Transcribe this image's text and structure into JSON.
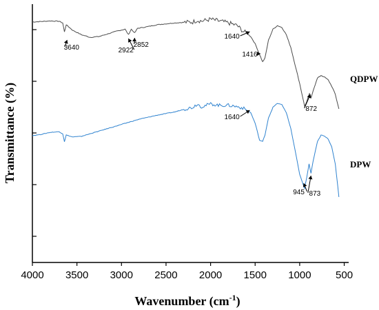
{
  "chart_data": {
    "type": "line",
    "xlabel": "Wavenumber (cm⁻¹)",
    "ylabel": "Transmittance (%)",
    "xlim": [
      4000,
      450
    ],
    "x_inverted": true,
    "x_ticks": [
      4000,
      3500,
      3000,
      2500,
      2000,
      1500,
      1000,
      500
    ],
    "y_ticks_shown_without_labels": 6,
    "grid": false,
    "series": [
      {
        "name": "QDPW",
        "color": "#4a4a4a",
        "points": [
          [
            4000,
            0.94
          ],
          [
            3800,
            0.946
          ],
          [
            3700,
            0.944
          ],
          [
            3660,
            0.935
          ],
          [
            3640,
            0.885
          ],
          [
            3620,
            0.925
          ],
          [
            3550,
            0.895
          ],
          [
            3450,
            0.87
          ],
          [
            3350,
            0.855
          ],
          [
            3250,
            0.86
          ],
          [
            3150,
            0.875
          ],
          [
            3050,
            0.89
          ],
          [
            2960,
            0.9
          ],
          [
            2922,
            0.87
          ],
          [
            2890,
            0.9
          ],
          [
            2852,
            0.88
          ],
          [
            2820,
            0.905
          ],
          [
            2700,
            0.915
          ],
          [
            2600,
            0.925
          ],
          [
            2500,
            0.93
          ],
          [
            2400,
            0.935
          ],
          [
            2300,
            0.938
          ],
          [
            2200,
            0.94
          ],
          [
            2150,
            0.95
          ],
          [
            2100,
            0.945
          ],
          [
            2000,
            0.955
          ],
          [
            1900,
            0.945
          ],
          [
            1800,
            0.935
          ],
          [
            1700,
            0.92
          ],
          [
            1640,
            0.89
          ],
          [
            1600,
            0.88
          ],
          [
            1550,
            0.86
          ],
          [
            1500,
            0.82
          ],
          [
            1450,
            0.76
          ],
          [
            1416,
            0.72
          ],
          [
            1390,
            0.74
          ],
          [
            1350,
            0.84
          ],
          [
            1300,
            0.9
          ],
          [
            1250,
            0.92
          ],
          [
            1200,
            0.91
          ],
          [
            1150,
            0.87
          ],
          [
            1100,
            0.8
          ],
          [
            1050,
            0.7
          ],
          [
            1000,
            0.6
          ],
          [
            945,
            0.475
          ],
          [
            920,
            0.5
          ],
          [
            890,
            0.545
          ],
          [
            872,
            0.52
          ],
          [
            850,
            0.56
          ],
          [
            800,
            0.63
          ],
          [
            760,
            0.645
          ],
          [
            720,
            0.635
          ],
          [
            680,
            0.62
          ],
          [
            640,
            0.585
          ],
          [
            600,
            0.54
          ],
          [
            560,
            0.46
          ]
        ]
      },
      {
        "name": "DPW",
        "color": "#2e82cf",
        "points": [
          [
            4000,
            0.165
          ],
          [
            3900,
            0.175
          ],
          [
            3800,
            0.19
          ],
          [
            3700,
            0.195
          ],
          [
            3660,
            0.18
          ],
          [
            3640,
            0.12
          ],
          [
            3620,
            0.17
          ],
          [
            3550,
            0.155
          ],
          [
            3450,
            0.16
          ],
          [
            3350,
            0.18
          ],
          [
            3200,
            0.21
          ],
          [
            3000,
            0.25
          ],
          [
            2800,
            0.29
          ],
          [
            2600,
            0.32
          ],
          [
            2400,
            0.345
          ],
          [
            2300,
            0.365
          ],
          [
            2200,
            0.38
          ],
          [
            2150,
            0.405
          ],
          [
            2100,
            0.385
          ],
          [
            2000,
            0.405
          ],
          [
            1900,
            0.395
          ],
          [
            1800,
            0.395
          ],
          [
            1700,
            0.385
          ],
          [
            1640,
            0.375
          ],
          [
            1600,
            0.36
          ],
          [
            1550,
            0.34
          ],
          [
            1500,
            0.26
          ],
          [
            1450,
            0.13
          ],
          [
            1416,
            0.12
          ],
          [
            1390,
            0.17
          ],
          [
            1350,
            0.3
          ],
          [
            1300,
            0.38
          ],
          [
            1250,
            0.41
          ],
          [
            1200,
            0.4
          ],
          [
            1150,
            0.34
          ],
          [
            1100,
            0.22
          ],
          [
            1050,
            0.05
          ],
          [
            1000,
            -0.13
          ],
          [
            945,
            -0.235
          ],
          [
            920,
            -0.15
          ],
          [
            895,
            -0.05
          ],
          [
            873,
            -0.12
          ],
          [
            850,
            -0.03
          ],
          [
            800,
            0.12
          ],
          [
            760,
            0.17
          ],
          [
            720,
            0.16
          ],
          [
            680,
            0.14
          ],
          [
            640,
            0.08
          ],
          [
            600,
            -0.05
          ],
          [
            560,
            -0.3
          ]
        ]
      }
    ],
    "annotations": [
      {
        "series": "QDPW",
        "text": "3640",
        "x": 3640
      },
      {
        "series": "QDPW",
        "text": "2922",
        "x": 2922
      },
      {
        "series": "QDPW",
        "text": "2852",
        "x": 2852
      },
      {
        "series": "QDPW",
        "text": "1640",
        "x": 1640
      },
      {
        "series": "QDPW",
        "text": "1416",
        "x": 1416
      },
      {
        "series": "QDPW",
        "text": "872",
        "x": 872
      },
      {
        "series": "DPW",
        "text": "1640",
        "x": 1640
      },
      {
        "series": "DPW",
        "text": "945",
        "x": 945
      },
      {
        "series": "DPW",
        "text": "873",
        "x": 873
      }
    ]
  }
}
